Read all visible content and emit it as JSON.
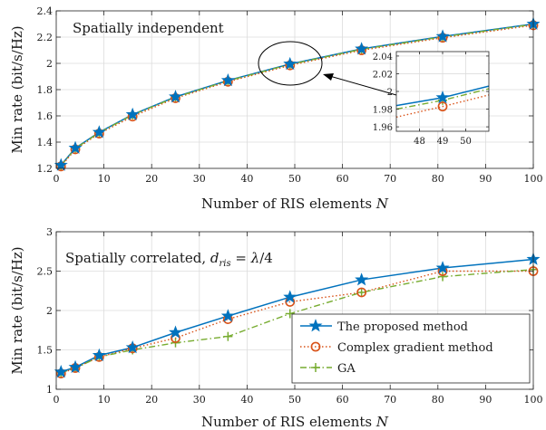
{
  "colors": {
    "proposed": "#0072BD",
    "complex_gradient": "#D95319",
    "ga": "#77AC30",
    "axes": "#262626",
    "grid": "#dcdcdc",
    "arrow": "#000000"
  },
  "chart_data": [
    {
      "type": "line",
      "title": "Spatially independent",
      "xlabel": "Number of RIS elements N",
      "ylabel": "Min rate (bit/s/Hz)",
      "xlim": [
        0,
        100
      ],
      "ylim": [
        1.2,
        2.4
      ],
      "xticks": [
        0,
        10,
        20,
        30,
        40,
        50,
        60,
        70,
        80,
        90,
        100
      ],
      "yticks": [
        1.2,
        1.4,
        1.6,
        1.8,
        2,
        2.2,
        2.4
      ],
      "ytick_labels": [
        "1.2",
        "1.4",
        "1.6",
        "1.8",
        "2",
        "2.2",
        "2.4"
      ],
      "grid": true,
      "x": [
        1,
        4,
        9,
        16,
        25,
        36,
        49,
        64,
        81,
        100
      ],
      "series": [
        {
          "name": "The proposed method",
          "key": "proposed",
          "values": [
            1.225,
            1.355,
            1.475,
            1.61,
            1.745,
            1.87,
            1.995,
            2.11,
            2.205,
            2.3
          ]
        },
        {
          "name": "Complex gradient method",
          "key": "complex_gradient",
          "values": [
            1.215,
            1.345,
            1.465,
            1.595,
            1.735,
            1.86,
            1.985,
            2.1,
            2.195,
            2.29
          ]
        },
        {
          "name": "GA",
          "key": "ga",
          "values": [
            1.222,
            1.352,
            1.472,
            1.607,
            1.742,
            1.867,
            1.992,
            2.107,
            2.202,
            2.297
          ]
        }
      ],
      "inset": {
        "xlim": [
          47,
          51
        ],
        "ylim": [
          1.955,
          2.045
        ],
        "xticks": [
          48,
          49,
          50
        ],
        "yticks": [
          1.96,
          1.98,
          2,
          2.02,
          2.04
        ],
        "ytick_labels": [
          "1.96",
          "1.98",
          "2",
          "2.02",
          "2.04"
        ],
        "series": [
          {
            "key": "proposed",
            "x": [
              47,
              49,
              51
            ],
            "values": [
              1.984,
              1.993,
              2.006
            ]
          },
          {
            "key": "complex_gradient",
            "x": [
              47,
              49,
              51
            ],
            "values": [
              1.971,
              1.983,
              1.996
            ]
          },
          {
            "key": "ga",
            "x": [
              47,
              49,
              51
            ],
            "values": [
              1.98,
              1.99,
              2.003
            ]
          }
        ]
      }
    },
    {
      "type": "line",
      "title": "Spatially correlated, d_ris = λ/4",
      "xlabel": "Number of RIS elements N",
      "ylabel": "Min rate (bit/s/Hz)",
      "xlim": [
        0,
        100
      ],
      "ylim": [
        1,
        3
      ],
      "xticks": [
        0,
        10,
        20,
        30,
        40,
        50,
        60,
        70,
        80,
        90,
        100
      ],
      "yticks": [
        1,
        1.5,
        2,
        2.5,
        3
      ],
      "ytick_labels": [
        "1",
        "1.5",
        "2",
        "2.5",
        "3"
      ],
      "grid": true,
      "legend_position": "bottom-right",
      "x": [
        1,
        4,
        9,
        16,
        25,
        36,
        49,
        64,
        81,
        100
      ],
      "series": [
        {
          "name": "The proposed method",
          "key": "proposed",
          "values": [
            1.22,
            1.28,
            1.43,
            1.53,
            1.72,
            1.93,
            2.17,
            2.39,
            2.54,
            2.65
          ]
        },
        {
          "name": "Complex gradient method",
          "key": "complex_gradient",
          "values": [
            1.2,
            1.27,
            1.41,
            1.52,
            1.65,
            1.89,
            2.11,
            2.23,
            2.5,
            2.5
          ]
        },
        {
          "name": "GA",
          "key": "ga",
          "values": [
            1.21,
            1.27,
            1.41,
            1.5,
            1.59,
            1.67,
            1.96,
            2.23,
            2.43,
            2.52
          ]
        }
      ]
    }
  ],
  "legend": [
    {
      "key": "proposed",
      "label": "The proposed method"
    },
    {
      "key": "complex_gradient",
      "label": "Complex gradient method"
    },
    {
      "key": "ga",
      "label": "GA"
    }
  ]
}
